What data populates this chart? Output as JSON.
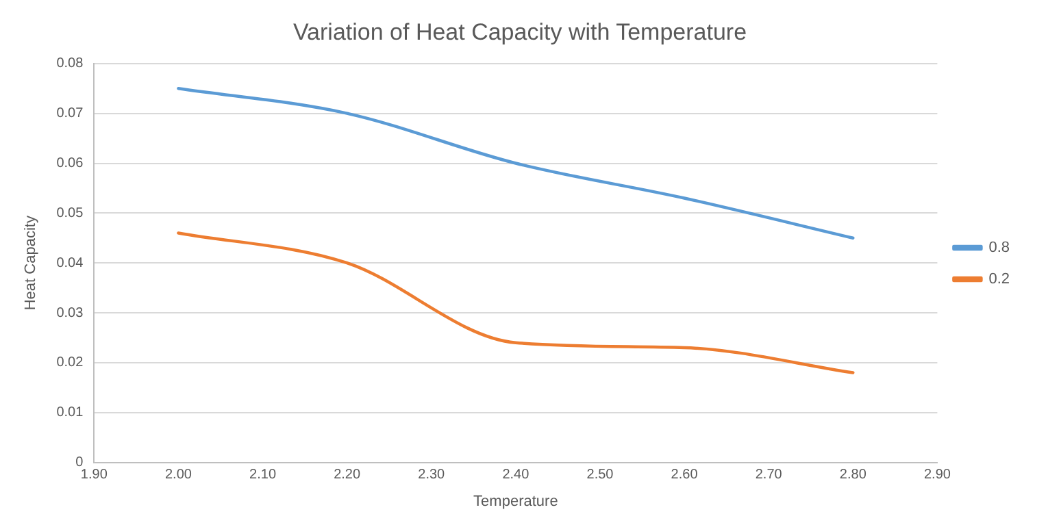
{
  "chart_data": {
    "type": "line",
    "title": "Variation of Heat Capacity with Temperature",
    "xlabel": "Temperature",
    "ylabel": "Heat Capacity",
    "x": [
      2.0,
      2.2,
      2.4,
      2.6,
      2.8
    ],
    "series": [
      {
        "name": "0.8",
        "color": "#5b9bd5",
        "values": [
          0.075,
          0.07,
          0.06,
          0.053,
          0.045
        ]
      },
      {
        "name": "0.2",
        "color": "#ed7d31",
        "values": [
          0.046,
          0.04,
          0.024,
          0.023,
          0.018
        ]
      }
    ],
    "xlim": [
      1.9,
      2.9
    ],
    "xticks": [
      {
        "value": 1.9,
        "label": "1.90"
      },
      {
        "value": 2.0,
        "label": "2.00"
      },
      {
        "value": 2.1,
        "label": "2.10"
      },
      {
        "value": 2.2,
        "label": "2.20"
      },
      {
        "value": 2.3,
        "label": "2.30"
      },
      {
        "value": 2.4,
        "label": "2.40"
      },
      {
        "value": 2.5,
        "label": "2.50"
      },
      {
        "value": 2.6,
        "label": "2.60"
      },
      {
        "value": 2.7,
        "label": "2.70"
      },
      {
        "value": 2.8,
        "label": "2.80"
      },
      {
        "value": 2.9,
        "label": "2.90"
      }
    ],
    "ylim": [
      0,
      0.08
    ],
    "yticks": [
      0,
      0.01,
      0.02,
      0.03,
      0.04,
      0.05,
      0.06,
      0.07,
      0.08
    ],
    "grid": "y",
    "legend": "right",
    "marker": "none",
    "line_style": "solid"
  }
}
